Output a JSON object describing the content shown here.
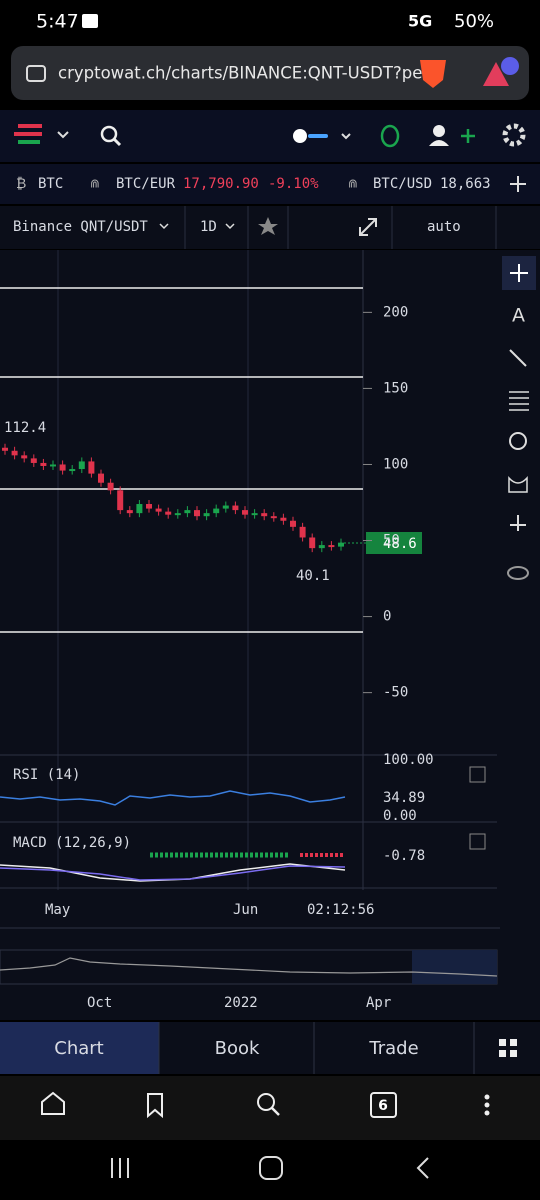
{
  "status": {
    "time": "5:47",
    "network": "5G",
    "battery": "50%"
  },
  "url": "cryptowat.ch/charts/BINANCE:QNT-USDT?per",
  "ticker": [
    {
      "symbol": "BTC"
    },
    {
      "symbol": "BTC/EUR",
      "price": "17,790.90",
      "change": "-9.10%"
    },
    {
      "symbol": "BTC/USD",
      "price": "18,663"
    }
  ],
  "toolbar": {
    "market": "Binance QNT/USDT",
    "interval": "1D",
    "scale": "auto"
  },
  "price_axis": {
    "ylim": [
      -91,
      241
    ],
    "ticks": [
      200,
      150,
      100,
      50,
      0,
      -50
    ]
  },
  "high_label": 112.4,
  "low_label": 40.1,
  "last_price": 48.6,
  "candles": {
    "open": [
      111,
      109,
      106,
      104,
      101,
      99,
      100,
      96,
      97,
      102,
      94,
      88,
      83,
      70,
      68,
      74,
      71,
      69,
      67,
      68,
      70,
      66,
      68,
      71,
      73,
      70,
      67,
      68,
      66,
      65,
      63,
      59,
      52,
      45,
      47,
      46
    ],
    "close": [
      109,
      106,
      104,
      101,
      99,
      100,
      96,
      97,
      102,
      94,
      88,
      83,
      70,
      68,
      74,
      71,
      69,
      67,
      68,
      70,
      66,
      68,
      71,
      73,
      70,
      67,
      68,
      66,
      65,
      63,
      59,
      52,
      45,
      47,
      46,
      48.6
    ]
  },
  "rsi": {
    "label": "RSI (14)",
    "ticks": [
      "100.00",
      "0.00"
    ],
    "value": 34.89
  },
  "macd": {
    "label": "MACD (12,26,9)",
    "value": -0.78
  },
  "time_axis": [
    "May",
    "Jun"
  ],
  "countdown": "02:12:56",
  "overview_axis": [
    "Oct",
    "2022",
    "Apr"
  ],
  "tools": {
    "text": "A"
  },
  "tabs": [
    "Chart",
    "Book",
    "Trade"
  ],
  "nav": {
    "tabs_count": "6"
  }
}
